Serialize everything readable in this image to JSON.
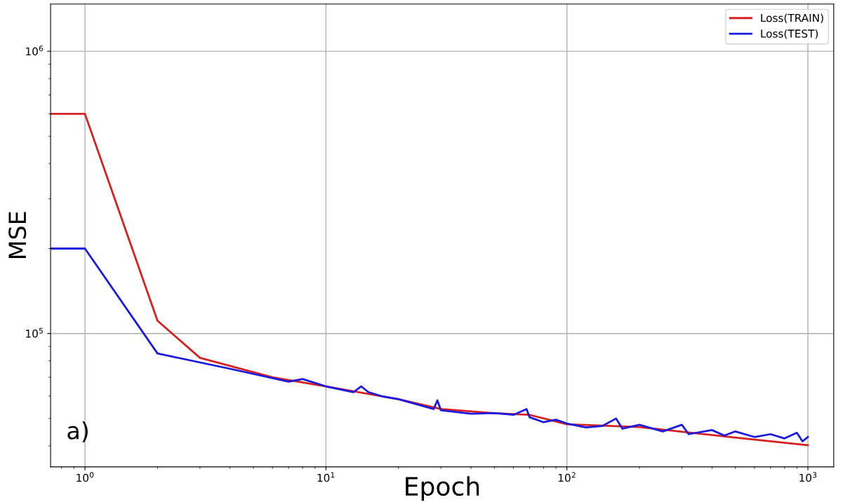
{
  "chart_data": {
    "type": "line",
    "xlabel": "Epoch",
    "ylabel": "MSE",
    "log": "xy",
    "grid": true,
    "legend": "top right",
    "marker": "none",
    "line_style": "solid",
    "xlim": [
      0.72,
      1280
    ],
    "ylim": [
      33700,
      1470000
    ],
    "xticks": [
      {
        "value": 1,
        "label": "10$^{0}$"
      },
      {
        "value": 10,
        "label": "10$^{1}$"
      },
      {
        "value": 100,
        "label": "10$^{2}$"
      },
      {
        "value": 1000,
        "label": "10$^{3}$"
      }
    ],
    "yticks": [
      {
        "value": 100000,
        "label": "10$^{5}$"
      },
      {
        "value": 1000000,
        "label": "10$^{6}$"
      }
    ],
    "annotations": [
      "a)"
    ],
    "series": [
      {
        "name": "Loss(TRAIN)",
        "color": "#d62020",
        "x": [
          0.72,
          1,
          2,
          3,
          6,
          10,
          20,
          30,
          50,
          70,
          100,
          200,
          500,
          1000
        ],
        "values": [
          600000,
          600000,
          111000,
          82000,
          70000,
          65000,
          58500,
          54000,
          52200,
          51500,
          47700,
          46600,
          42800,
          40200
        ]
      },
      {
        "name": "Loss(TEST)",
        "color": "#1a1ae0",
        "x": [
          0.72,
          1,
          2,
          4,
          7,
          8,
          10,
          13,
          14,
          15,
          17,
          20,
          28,
          29,
          30,
          40,
          50,
          60,
          68,
          70,
          80,
          90,
          100,
          120,
          140,
          160,
          170,
          200,
          250,
          300,
          320,
          400,
          450,
          500,
          600,
          700,
          800,
          900,
          950,
          1000
        ],
        "values": [
          200000,
          200000,
          85000,
          75000,
          67500,
          69000,
          65000,
          62000,
          65000,
          62000,
          60000,
          58500,
          54000,
          58000,
          53500,
          52000,
          52300,
          51500,
          54000,
          50500,
          48500,
          49500,
          48000,
          46500,
          47000,
          50000,
          46000,
          47500,
          45000,
          47500,
          44000,
          45500,
          43500,
          45000,
          43000,
          44000,
          42500,
          44500,
          41500,
          43000
        ]
      }
    ]
  }
}
